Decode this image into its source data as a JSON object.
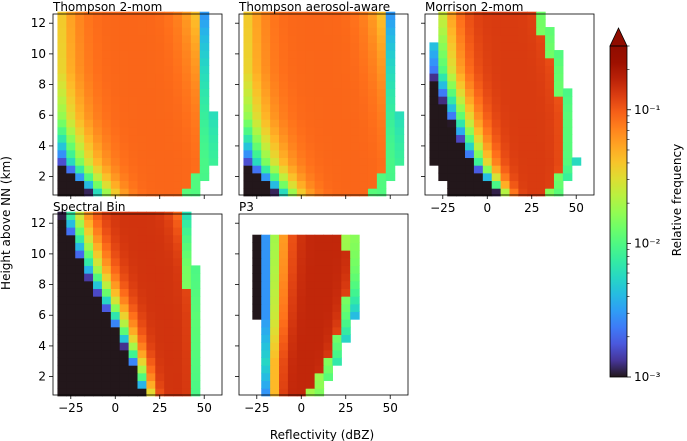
{
  "chart_data": {
    "type": "heatmap",
    "xlabel": "Reflectivity (dBZ)",
    "ylabel": "Height above NN (km)",
    "x_range": [
      -35,
      60
    ],
    "y_range": [
      0.8,
      12.6
    ],
    "x_ticks": [
      -25,
      0,
      25,
      50
    ],
    "y_ticks": [
      2,
      4,
      6,
      8,
      10,
      12
    ],
    "bin_width_dbz": 5,
    "bin_height_km": 0.5,
    "scale": "log",
    "panels": [
      {
        "title": "Thompson 2-mom",
        "x_tick_labels_visible": false,
        "y_tick_labels_visible": true,
        "profile": {
          "heights": [
            1,
            3,
            6,
            9,
            12.5
          ],
          "peak": [
            30,
            26,
            18,
            12,
            8
          ],
          "spread": [
            22,
            28,
            30,
            30,
            28
          ],
          "xmin": [
            -32,
            -32,
            -32,
            -32,
            -32
          ],
          "xmax": [
            45,
            55,
            55,
            53,
            53
          ],
          "amp": 0.09
        }
      },
      {
        "title": "Thompson aerosol-aware",
        "x_tick_labels_visible": false,
        "y_tick_labels_visible": false,
        "profile": {
          "heights": [
            1,
            3,
            6,
            9,
            12.5
          ],
          "peak": [
            30,
            26,
            18,
            12,
            8
          ],
          "spread": [
            22,
            28,
            30,
            30,
            28
          ],
          "xmin": [
            -32,
            -32,
            -32,
            -32,
            -32
          ],
          "xmax": [
            45,
            55,
            55,
            53,
            53
          ],
          "amp": 0.09
        }
      },
      {
        "title": "Morrison 2-mom",
        "x_tick_labels_visible": true,
        "y_tick_labels_visible": false,
        "profile": {
          "heights": [
            1,
            3,
            6,
            9,
            12.5
          ],
          "peak": [
            28,
            26,
            22,
            16,
            10
          ],
          "spread": [
            11,
            17,
            21,
            23,
            22
          ],
          "xmin": [
            -20,
            -32,
            -32,
            -32,
            -28
          ],
          "xmax": [
            40,
            50,
            48,
            43,
            33
          ],
          "amp": 0.13
        }
      },
      {
        "title": "Spectral Bin",
        "x_tick_labels_visible": true,
        "y_tick_labels_visible": true,
        "profile": {
          "heights": [
            1,
            3,
            6,
            9,
            12.5
          ],
          "peak": [
            34,
            32,
            28,
            22,
            12
          ],
          "spread": [
            9,
            11,
            15,
            19,
            20
          ],
          "xmin": [
            -32,
            -32,
            -32,
            -32,
            -32
          ],
          "xmax": [
            47,
            47,
            47,
            45,
            41
          ],
          "amp": 0.14
        }
      },
      {
        "title": "P3",
        "x_tick_labels_visible": true,
        "y_tick_labels_visible": false,
        "profile": {
          "heights": [
            1,
            3,
            6,
            9,
            11
          ],
          "peak": [
            0,
            3,
            8,
            12,
            14
          ],
          "spread": [
            10,
            12,
            14,
            16,
            17
          ],
          "xmin": [
            -20,
            -20,
            -25,
            -25,
            -25
          ],
          "xmax": [
            10,
            20,
            30,
            32,
            30
          ],
          "amp": 0.16
        }
      }
    ],
    "colorbar": {
      "label": "Relative frequency",
      "min": 0.001,
      "max": 0.3,
      "ticks": [
        "10⁻³",
        "10⁻²",
        "10⁻¹"
      ],
      "extend": "max",
      "colormap": "turbo"
    }
  }
}
